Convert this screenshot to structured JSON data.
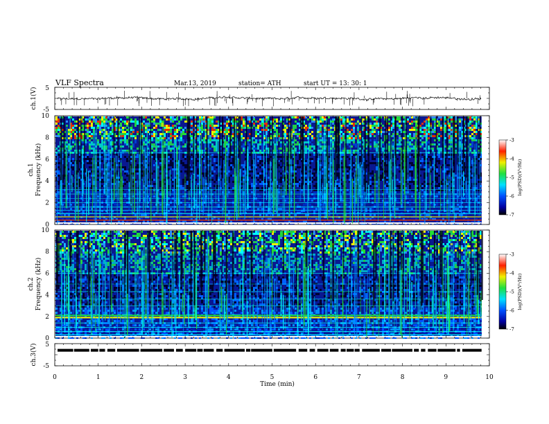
{
  "header": {
    "title": "VLF  Spectra",
    "date": "Mar.13, 2019",
    "station": "station= ATH",
    "start": "start  UT  =    13: 30: 1"
  },
  "colors": {
    "spectrogram_background": "#0a1890",
    "accent_cyan": "#00ffff",
    "accent_green": "#22dd33",
    "accent_yellow": "#f0f000",
    "accent_red": "#e02000"
  },
  "chart_data": [
    {
      "type": "line",
      "id": "ch1-waveform",
      "ylabel": "ch.1(V)",
      "ylim": [
        -5,
        5
      ],
      "yticks": [
        "5",
        "-5"
      ],
      "xlim": [
        0,
        10
      ],
      "x_data_range": [
        0,
        9.82
      ],
      "baseline": 0
    },
    {
      "type": "heatmap",
      "id": "ch1-spectrogram",
      "ylabel": "ch.1\nFrequency (kHz)",
      "ylim": [
        0,
        10
      ],
      "yticks": [
        "0",
        "2",
        "4",
        "6",
        "8",
        "10"
      ],
      "xlim": [
        0,
        10
      ],
      "x_data_range": [
        0,
        9.82
      ],
      "colorbar": {
        "label": "log(PSD)(V²/Hz)",
        "range": [
          -7,
          -3
        ],
        "ticks": [
          "-3",
          "-4",
          "-5",
          "-6",
          "-7"
        ]
      }
    },
    {
      "type": "heatmap",
      "id": "ch2-spectrogram",
      "ylabel": "ch.2\nFrequency (kHz)",
      "ylim": [
        0,
        10
      ],
      "yticks": [
        "0",
        "2",
        "4",
        "6",
        "8",
        "10"
      ],
      "xlim": [
        0,
        10
      ],
      "x_data_range": [
        0,
        9.82
      ],
      "colorbar": {
        "label": "log(PSD)(V²/Hz)",
        "range": [
          -7,
          -3
        ],
        "ticks": [
          "-3",
          "-4",
          "-5",
          "-6",
          "-7"
        ]
      }
    },
    {
      "type": "line",
      "id": "ch3-waveform",
      "ylabel": "ch.3(V)",
      "ylim": [
        -5,
        5
      ],
      "yticks": [
        "5",
        "-5"
      ],
      "xlim": [
        0,
        10
      ],
      "x_data_range": [
        0,
        9.82
      ],
      "baseline": 2
    }
  ],
  "xaxis": {
    "label": "Time  (min)",
    "ticks": [
      "0",
      "1",
      "2",
      "3",
      "4",
      "5",
      "6",
      "7",
      "8",
      "9",
      "10"
    ]
  }
}
